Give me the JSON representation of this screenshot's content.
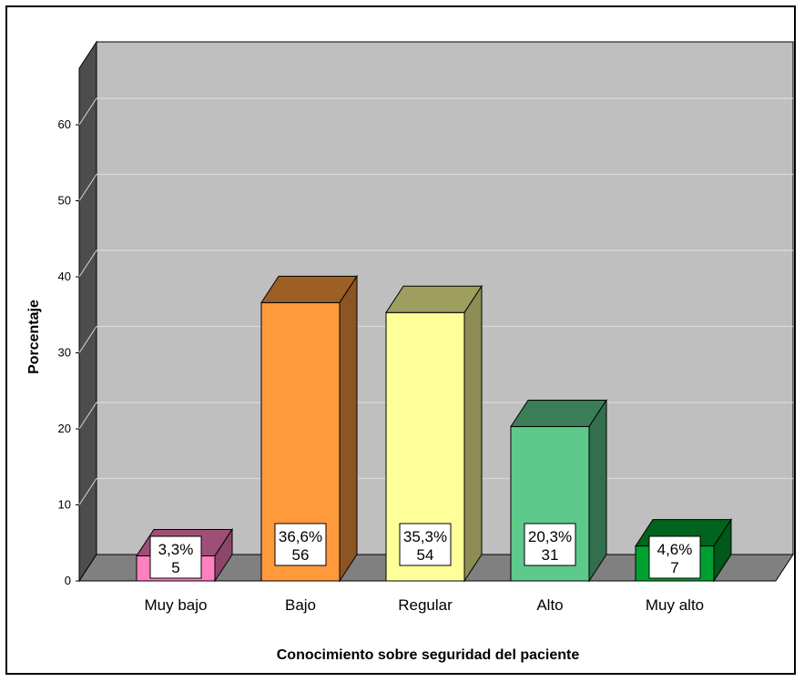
{
  "chart_data": {
    "type": "bar",
    "style": "3d",
    "title": "",
    "xlabel": "Conocimiento sobre seguridad del paciente",
    "ylabel": "Porcentaje",
    "ylim": [
      0,
      60
    ],
    "yticks": [
      "0",
      "10",
      "20",
      "30",
      "40",
      "50",
      "60"
    ],
    "grid": true,
    "categories": [
      "Muy bajo",
      "Bajo",
      "Regular",
      "Alto",
      "Muy alto"
    ],
    "values": [
      3.3,
      36.6,
      35.3,
      20.3,
      4.6
    ],
    "counts": [
      5,
      56,
      54,
      31,
      7
    ],
    "percent_labels": [
      "3,3%",
      "36,6%",
      "35,3%",
      "20,3%",
      "4,6%"
    ],
    "count_labels": [
      "5",
      "56",
      "54",
      "31",
      "7"
    ],
    "colors": [
      "#ff80c0",
      "#ff9a3c",
      "#ffff99",
      "#5dc98a",
      "#00a030"
    ],
    "wall_color": "#bfbfbf",
    "floor_color": "#808080"
  }
}
